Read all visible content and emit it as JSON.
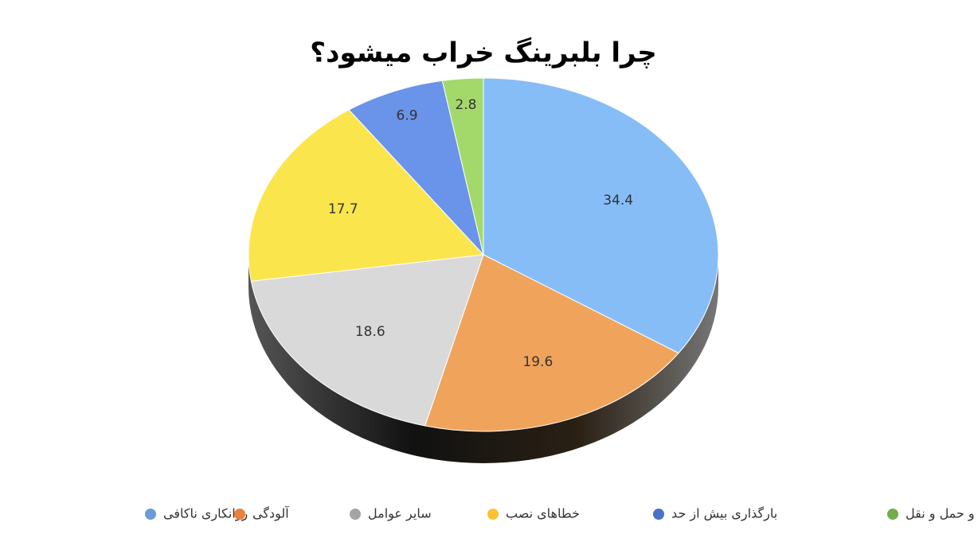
{
  "chart_data": {
    "type": "pie",
    "title": "چرا بلبرینگ خراب میشود؟",
    "categories": [
      "روانکاری ناکافی",
      "آلودگی",
      "سایر عوامل",
      "خطاهای نصب",
      "بارگذاری بیش از حد",
      "خطاهای انبارداری و حمل و نقل"
    ],
    "values": [
      34.4,
      19.6,
      18.6,
      17.7,
      6.9,
      2.8
    ],
    "colors": [
      "#86bdf7",
      "#f0a45b",
      "#d9d9d9",
      "#fbe54d",
      "#6a93ea",
      "#a3d96b"
    ],
    "legend_colors": [
      "#6a9bd8",
      "#e8823e",
      "#a5a5a5",
      "#f9c22e",
      "#4a72c8",
      "#72ad4c"
    ],
    "legend": "bottom"
  }
}
